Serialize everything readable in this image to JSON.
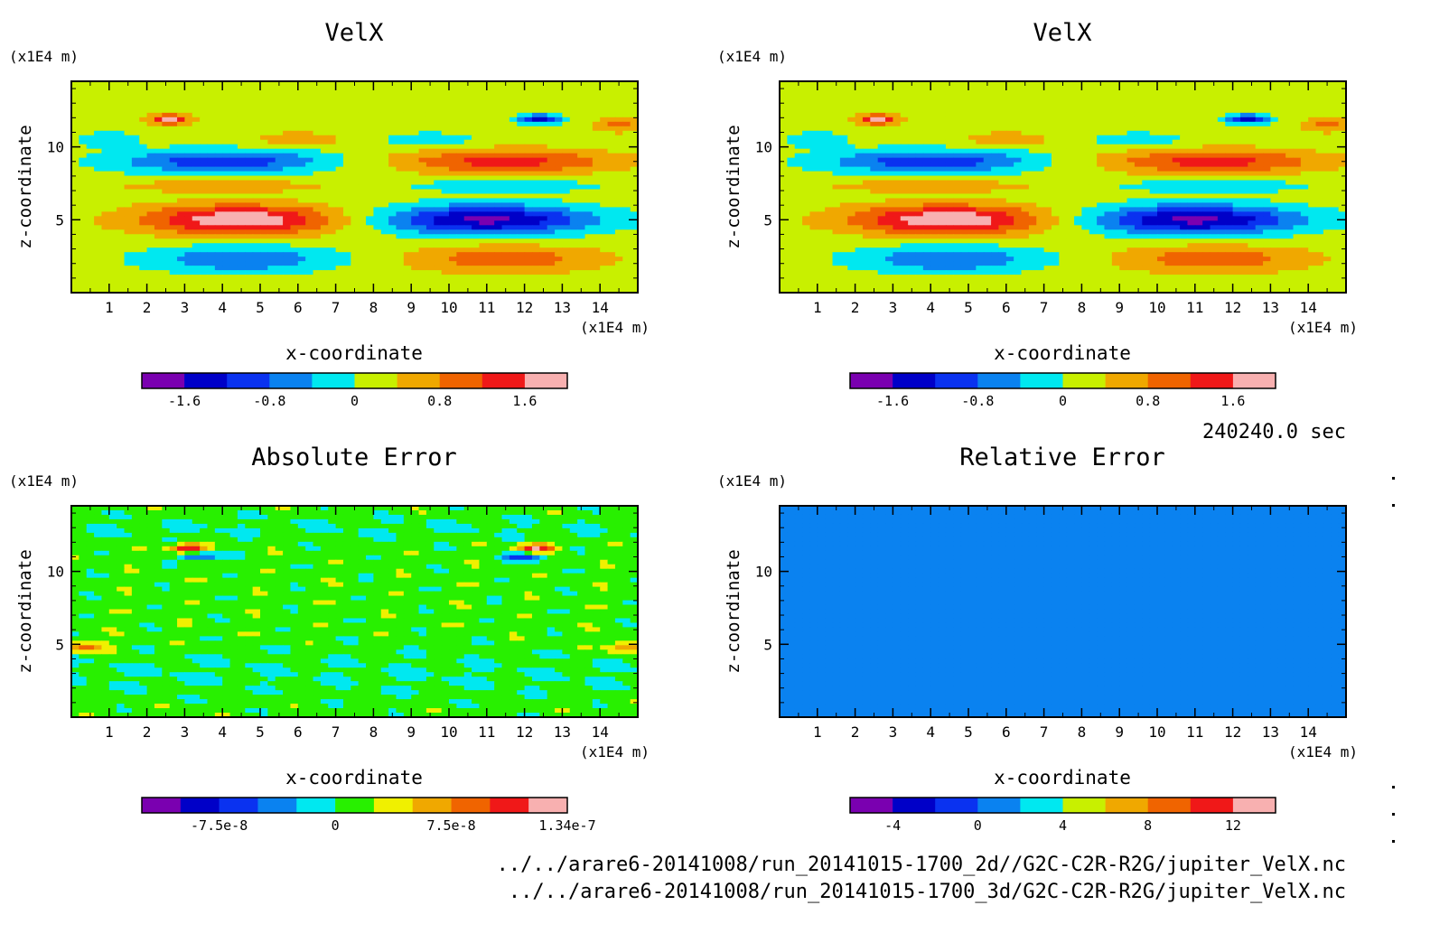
{
  "figure": {
    "time_label": "240240.0 sec",
    "file_paths": [
      "../../arare6-20141008/run_20141015-1700_2d//G2C-C2R-R2G/jupiter_VelX.nc",
      "../../arare6-20141008/run_20141015-1700_3d/G2C-C2R-R2G/jupiter_VelX.nc"
    ]
  },
  "chart_data": [
    {
      "type": "heatmap",
      "title": "VelX",
      "xlabel": "x-coordinate",
      "ylabel": "z-coordinate",
      "x_unit": "(x1E4 m)",
      "y_unit": "(x1E4 m)",
      "xlim": [
        0,
        15
      ],
      "ylim": [
        0,
        14.5
      ],
      "x_ticks": [
        "1",
        "2",
        "3",
        "4",
        "5",
        "6",
        "7",
        "8",
        "9",
        "10",
        "11",
        "12",
        "13",
        "14"
      ],
      "y_ticks": [
        "5",
        "10"
      ],
      "pattern": "velocity",
      "colorbar": {
        "colors": [
          "#7a00b0",
          "#0000c8",
          "#0a32f0",
          "#0a82f0",
          "#00e8f0",
          "#c8f000",
          "#f0a800",
          "#f06400",
          "#f01818",
          "#f8b0b0"
        ],
        "ticks": [
          "-1.6",
          "-0.8",
          "0",
          "0.8",
          "1.6"
        ],
        "tick_positions": [
          1,
          3,
          5,
          7,
          9
        ]
      }
    },
    {
      "type": "heatmap",
      "title": "VelX",
      "xlabel": "x-coordinate",
      "ylabel": "z-coordinate",
      "x_unit": "(x1E4 m)",
      "y_unit": "(x1E4 m)",
      "xlim": [
        0,
        15
      ],
      "ylim": [
        0,
        14.5
      ],
      "x_ticks": [
        "1",
        "2",
        "3",
        "4",
        "5",
        "6",
        "7",
        "8",
        "9",
        "10",
        "11",
        "12",
        "13",
        "14"
      ],
      "y_ticks": [
        "5",
        "10"
      ],
      "pattern": "velocity",
      "colorbar": {
        "colors": [
          "#7a00b0",
          "#0000c8",
          "#0a32f0",
          "#0a82f0",
          "#00e8f0",
          "#c8f000",
          "#f0a800",
          "#f06400",
          "#f01818",
          "#f8b0b0"
        ],
        "ticks": [
          "-1.6",
          "-0.8",
          "0",
          "0.8",
          "1.6"
        ],
        "tick_positions": [
          1,
          3,
          5,
          7,
          9
        ]
      }
    },
    {
      "type": "heatmap",
      "title": "Absolute Error",
      "xlabel": "x-coordinate",
      "ylabel": "z-coordinate",
      "x_unit": "(x1E4 m)",
      "y_unit": "(x1E4 m)",
      "xlim": [
        0,
        15
      ],
      "ylim": [
        0,
        14.5
      ],
      "x_ticks": [
        "1",
        "2",
        "3",
        "4",
        "5",
        "6",
        "7",
        "8",
        "9",
        "10",
        "11",
        "12",
        "13",
        "14"
      ],
      "y_ticks": [
        "5",
        "10"
      ],
      "pattern": "abs_error",
      "colorbar": {
        "colors": [
          "#7a00b0",
          "#0000c8",
          "#0a32f0",
          "#0a82f0",
          "#00e8f0",
          "#28f000",
          "#f0f000",
          "#f0a800",
          "#f06400",
          "#f01818",
          "#f8b0b0"
        ],
        "ticks": [
          "-7.5e-8",
          "0",
          "7.5e-8",
          "1.34e-7"
        ],
        "tick_positions": [
          2,
          5,
          8,
          11
        ]
      }
    },
    {
      "type": "heatmap",
      "title": "Relative Error",
      "xlabel": "x-coordinate",
      "ylabel": "z-coordinate",
      "x_unit": "(x1E4 m)",
      "y_unit": "(x1E4 m)",
      "xlim": [
        0,
        15
      ],
      "ylim": [
        0,
        14.5
      ],
      "x_ticks": [
        "1",
        "2",
        "3",
        "4",
        "5",
        "6",
        "7",
        "8",
        "9",
        "10",
        "11",
        "12",
        "13",
        "14"
      ],
      "y_ticks": [
        "5",
        "10"
      ],
      "pattern": "rel_error",
      "colorbar": {
        "colors": [
          "#7a00b0",
          "#0000c8",
          "#0a32f0",
          "#0a82f0",
          "#00e8f0",
          "#c8f000",
          "#f0a800",
          "#f06400",
          "#f01818",
          "#f8b0b0"
        ],
        "ticks": [
          "-4",
          "0",
          "4",
          "8",
          "12"
        ],
        "tick_positions": [
          1,
          3,
          5,
          7,
          9
        ]
      }
    }
  ]
}
